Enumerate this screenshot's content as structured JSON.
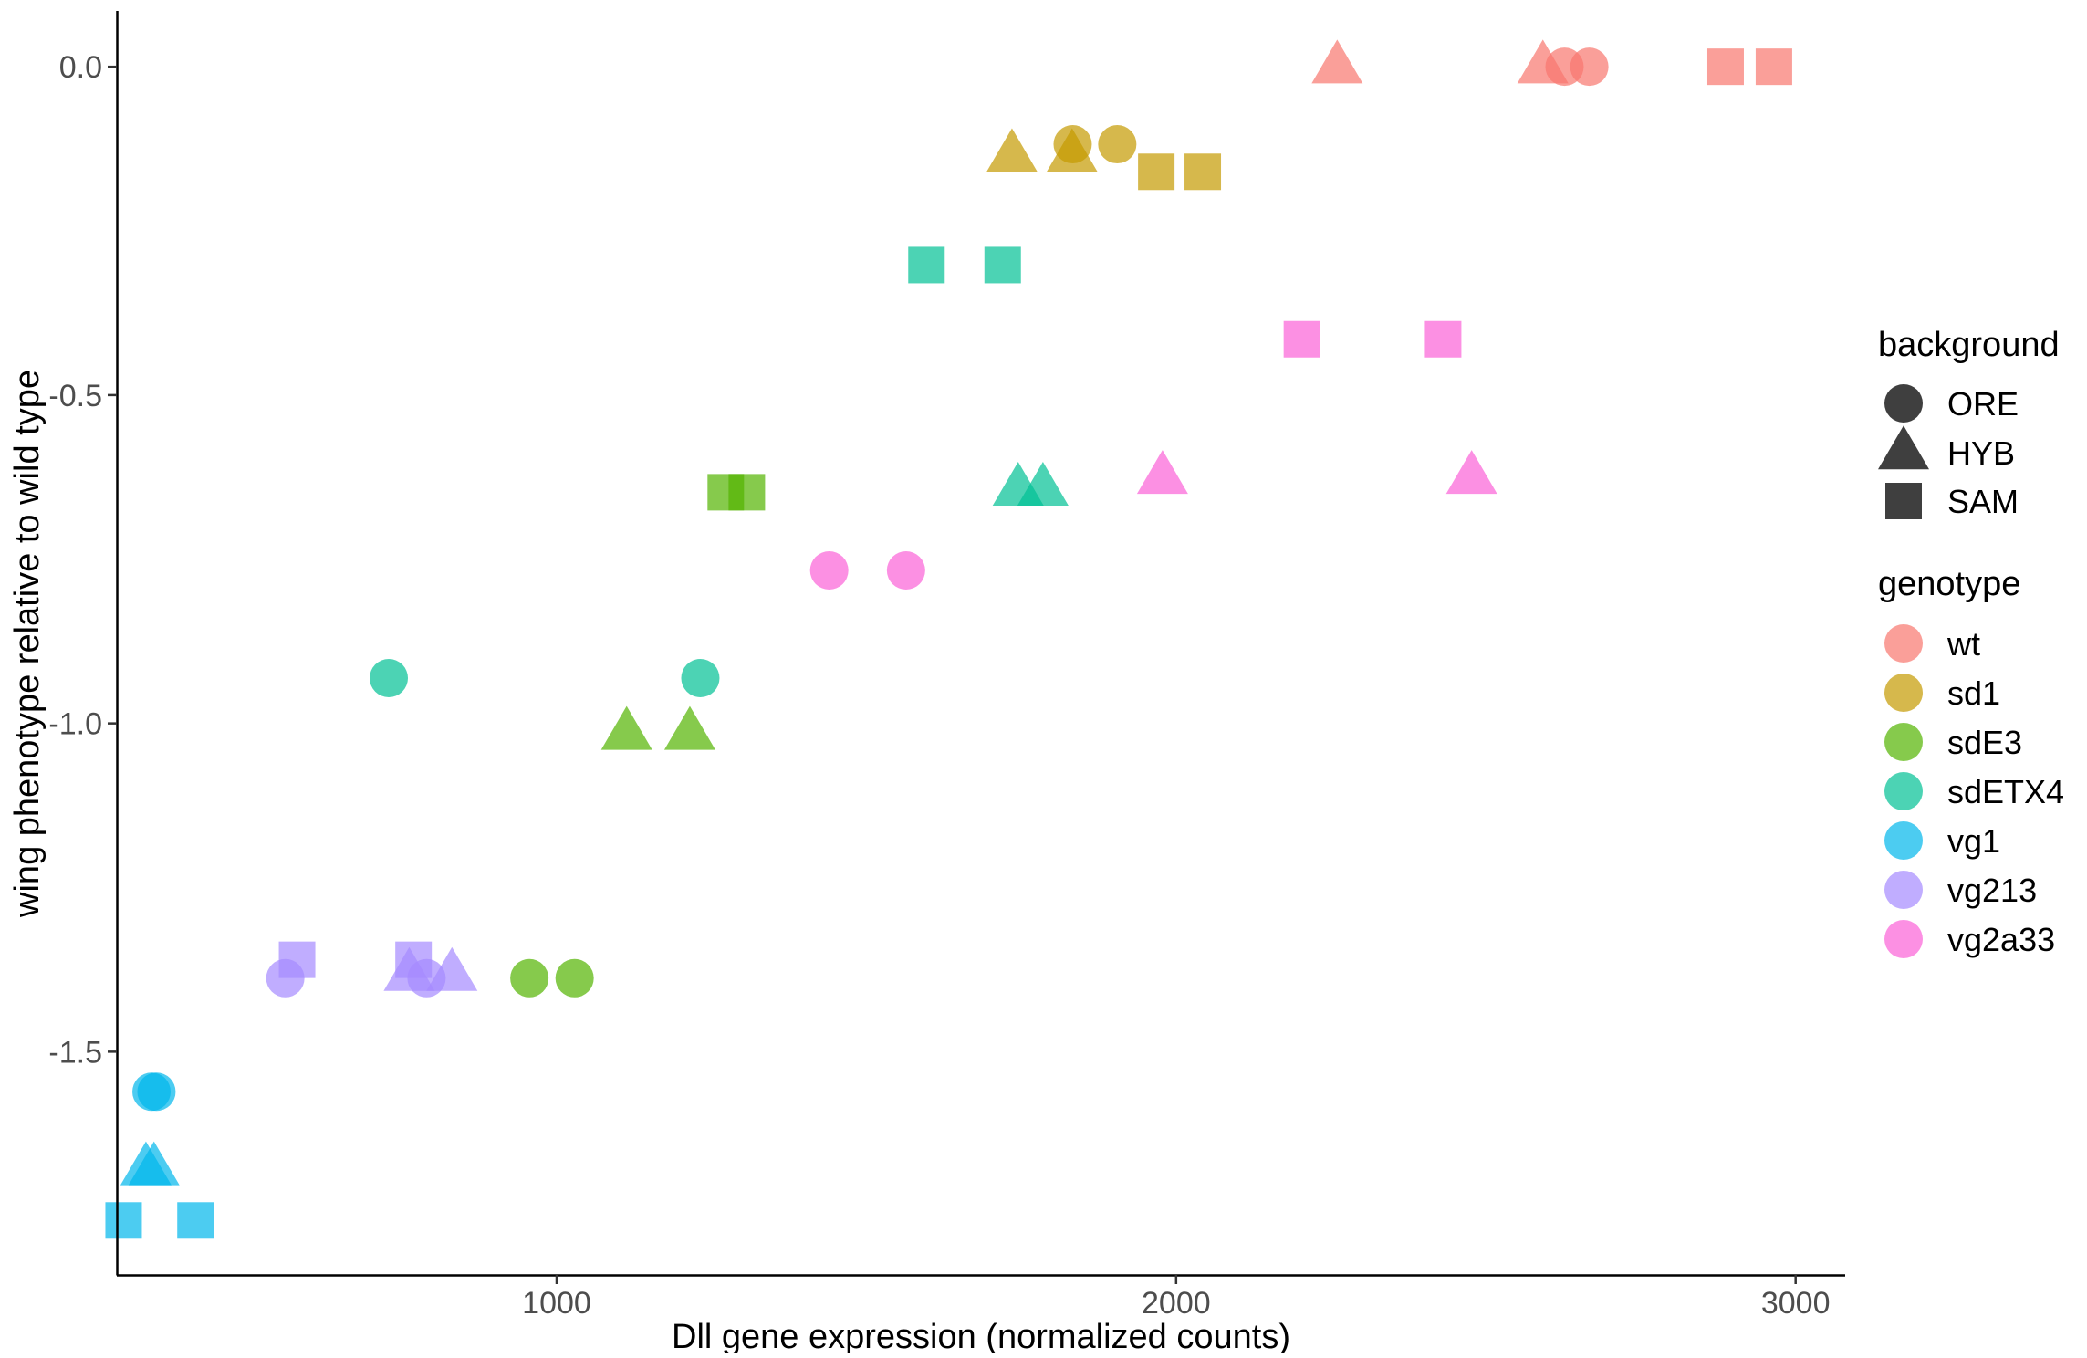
{
  "chart_data": {
    "type": "scatter",
    "xlabel": "Dll gene expression (normalized counts)",
    "ylabel": "wing phenotype relative to wild type",
    "xlim": [
      290,
      3080
    ],
    "ylim": [
      -1.84,
      0.085
    ],
    "x_ticks": [
      1000,
      2000,
      3000
    ],
    "x_tick_labels": [
      "1000",
      "2000",
      "3000"
    ],
    "y_ticks": [
      0.0,
      -0.5,
      -1.0,
      -1.5
    ],
    "y_tick_labels": [
      "0.0",
      "-0.5",
      "-1.0",
      "-1.5"
    ],
    "grid": false,
    "legend_position": "right",
    "point_opacity": 0.7,
    "legend": {
      "shape_title": "background",
      "shapes": [
        {
          "label": "ORE",
          "shape": "circle"
        },
        {
          "label": "HYB",
          "shape": "triangle"
        },
        {
          "label": "SAM",
          "shape": "square"
        }
      ],
      "color_title": "genotype",
      "colors": [
        {
          "label": "wt",
          "color": "#F8766D"
        },
        {
          "label": "sd1",
          "color": "#C49A00"
        },
        {
          "label": "sdE3",
          "color": "#53B400"
        },
        {
          "label": "sdETX4",
          "color": "#00C094"
        },
        {
          "label": "vg1",
          "color": "#00B6EB"
        },
        {
          "label": "vg213",
          "color": "#A58AFF"
        },
        {
          "label": "vg2a33",
          "color": "#FB61D7"
        }
      ]
    },
    "shape_colors": {
      "legend_key": "#3f3f3f"
    },
    "series": [
      {
        "genotype": "wt",
        "points": [
          {
            "x": 2627,
            "y": 0.0,
            "background": "ORE"
          },
          {
            "x": 2667,
            "y": 0.0,
            "background": "ORE"
          },
          {
            "x": 2260,
            "y": 0.0,
            "background": "HYB"
          },
          {
            "x": 2592,
            "y": 0.0,
            "background": "HYB"
          },
          {
            "x": 2887,
            "y": 0.0,
            "background": "SAM"
          },
          {
            "x": 2965,
            "y": 0.0,
            "background": "SAM"
          }
        ]
      },
      {
        "genotype": "sd1",
        "points": [
          {
            "x": 1833,
            "y": -0.118,
            "background": "ORE"
          },
          {
            "x": 1905,
            "y": -0.118,
            "background": "ORE"
          },
          {
            "x": 1735,
            "y": -0.135,
            "background": "HYB"
          },
          {
            "x": 1832,
            "y": -0.135,
            "background": "HYB"
          },
          {
            "x": 1968,
            "y": -0.16,
            "background": "SAM"
          },
          {
            "x": 2043,
            "y": -0.16,
            "background": "SAM"
          }
        ]
      },
      {
        "genotype": "sdE3",
        "points": [
          {
            "x": 956,
            "y": -1.388,
            "background": "ORE"
          },
          {
            "x": 1029,
            "y": -1.388,
            "background": "ORE"
          },
          {
            "x": 1113,
            "y": -1.015,
            "background": "HYB"
          },
          {
            "x": 1215,
            "y": -1.015,
            "background": "HYB"
          },
          {
            "x": 1273,
            "y": -0.648,
            "background": "SAM"
          },
          {
            "x": 1307,
            "y": -0.648,
            "background": "SAM"
          }
        ]
      },
      {
        "genotype": "sdETX4",
        "points": [
          {
            "x": 729,
            "y": -0.931,
            "background": "ORE"
          },
          {
            "x": 1232,
            "y": -0.931,
            "background": "ORE"
          },
          {
            "x": 1745,
            "y": -0.643,
            "background": "HYB"
          },
          {
            "x": 1785,
            "y": -0.643,
            "background": "HYB"
          },
          {
            "x": 1597,
            "y": -0.302,
            "background": "SAM"
          },
          {
            "x": 1720,
            "y": -0.302,
            "background": "SAM"
          }
        ]
      },
      {
        "genotype": "vg1",
        "points": [
          {
            "x": 346,
            "y": -1.561,
            "background": "ORE"
          },
          {
            "x": 354,
            "y": -1.561,
            "background": "ORE"
          },
          {
            "x": 337,
            "y": -1.678,
            "background": "HYB"
          },
          {
            "x": 350,
            "y": -1.678,
            "background": "HYB"
          },
          {
            "x": 301,
            "y": -1.757,
            "background": "SAM"
          },
          {
            "x": 417,
            "y": -1.757,
            "background": "SAM"
          }
        ]
      },
      {
        "genotype": "vg213",
        "points": [
          {
            "x": 562,
            "y": -1.388,
            "background": "ORE"
          },
          {
            "x": 790,
            "y": -1.388,
            "background": "ORE"
          },
          {
            "x": 762,
            "y": -1.382,
            "background": "HYB"
          },
          {
            "x": 831,
            "y": -1.382,
            "background": "HYB"
          },
          {
            "x": 581,
            "y": -1.36,
            "background": "SAM"
          },
          {
            "x": 769,
            "y": -1.36,
            "background": "SAM"
          }
        ]
      },
      {
        "genotype": "vg2a33",
        "points": [
          {
            "x": 1440,
            "y": -0.767,
            "background": "ORE"
          },
          {
            "x": 1564,
            "y": -0.767,
            "background": "ORE"
          },
          {
            "x": 1978,
            "y": -0.625,
            "background": "HYB"
          },
          {
            "x": 2477,
            "y": -0.625,
            "background": "HYB"
          },
          {
            "x": 2203,
            "y": -0.415,
            "background": "SAM"
          },
          {
            "x": 2431,
            "y": -0.415,
            "background": "SAM"
          }
        ]
      }
    ]
  }
}
